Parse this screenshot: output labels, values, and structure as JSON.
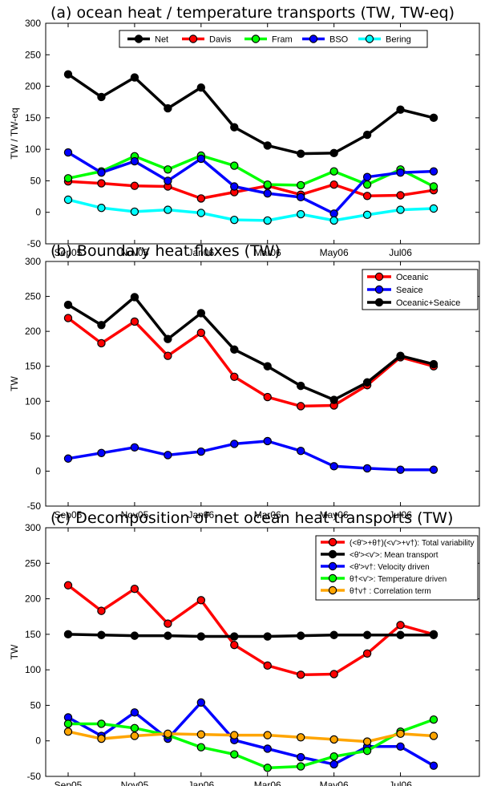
{
  "chart_data": [
    {
      "type": "line",
      "title": "(a) ocean heat / temperature transports (TW, TW-eq)",
      "ylabel": "TW / TW-eq",
      "xlabel": "",
      "ylim": [
        -50,
        300
      ],
      "yticks": [
        -50,
        0,
        50,
        100,
        150,
        200,
        250,
        300
      ],
      "x": [
        "Sep05",
        "Oct05",
        "Nov05",
        "Dec05",
        "Jan06",
        "Feb06",
        "Mar06",
        "Apr06",
        "May06",
        "Jun06",
        "Jul06",
        "Aug06"
      ],
      "xticks": [
        "Sep05",
        "Nov05",
        "Jan06",
        "Mar06",
        "May06",
        "Jul06"
      ],
      "grid": false,
      "legend": "top-center, horizontal",
      "series": [
        {
          "name": "Net",
          "color": "#000000",
          "values": [
            219,
            183,
            214,
            165,
            198,
            135,
            106,
            93,
            94,
            123,
            163,
            150
          ]
        },
        {
          "name": "Davis",
          "color": "#ff0000",
          "values": [
            49,
            46,
            42,
            41,
            22,
            32,
            42,
            28,
            44,
            26,
            27,
            35
          ]
        },
        {
          "name": "Fram",
          "color": "#00ff00",
          "values": [
            54,
            65,
            89,
            68,
            90,
            74,
            44,
            43,
            65,
            44,
            68,
            41
          ]
        },
        {
          "name": "BSO",
          "color": "#0000ff",
          "values": [
            95,
            63,
            81,
            50,
            85,
            41,
            30,
            24,
            -2,
            56,
            63,
            65
          ]
        },
        {
          "name": "Bering",
          "color": "#00ffff",
          "values": [
            20,
            7,
            1,
            4,
            -1,
            -12,
            -13,
            -3,
            -13,
            -4,
            4,
            6
          ]
        }
      ]
    },
    {
      "type": "line",
      "title": "(b) Boundary heat fluxes (TW)",
      "ylabel": "TW",
      "xlabel": "",
      "ylim": [
        -50,
        300
      ],
      "yticks": [
        -50,
        0,
        50,
        100,
        150,
        200,
        250,
        300
      ],
      "x": [
        "Sep05",
        "Oct05",
        "Nov05",
        "Dec05",
        "Jan06",
        "Feb06",
        "Mar06",
        "Apr06",
        "May06",
        "Jun06",
        "Jul06",
        "Aug06"
      ],
      "xticks": [
        "Sep05",
        "Nov05",
        "Jan06",
        "Mar06",
        "May06",
        "Jul06"
      ],
      "grid": false,
      "legend": "top-right",
      "series": [
        {
          "name": "Oceanic",
          "color": "#ff0000",
          "values": [
            219,
            183,
            214,
            165,
            198,
            135,
            106,
            93,
            94,
            123,
            163,
            150
          ]
        },
        {
          "name": "Seaice",
          "color": "#0000ff",
          "values": [
            18,
            26,
            34,
            23,
            28,
            39,
            43,
            29,
            7,
            4,
            2,
            2
          ]
        },
        {
          "name": "Oceanic+Seaice",
          "color": "#000000",
          "values": [
            238,
            209,
            249,
            189,
            226,
            174,
            150,
            122,
            102,
            127,
            165,
            153
          ]
        }
      ]
    },
    {
      "type": "line",
      "title": "(c) Decomposition of net ocean heat transports (TW)",
      "ylabel": "TW",
      "xlabel": "",
      "ylim": [
        -50,
        300
      ],
      "yticks": [
        -50,
        0,
        50,
        100,
        150,
        200,
        250,
        300
      ],
      "x": [
        "Sep05",
        "Oct05",
        "Nov05",
        "Dec05",
        "Jan06",
        "Feb06",
        "Mar06",
        "Apr06",
        "May06",
        "Jun06",
        "Jul06",
        "Aug06"
      ],
      "xticks": [
        "Sep05",
        "Nov05",
        "Jan06",
        "Mar06",
        "May06",
        "Jul06"
      ],
      "grid": false,
      "legend": "top-right",
      "series": [
        {
          "name": "(<θ'>+θ†)(<v'>+v†): Total variability",
          "color": "#ff0000",
          "values": [
            219,
            183,
            214,
            165,
            198,
            135,
            106,
            93,
            94,
            123,
            163,
            150
          ]
        },
        {
          "name": "<θ'><v'>: Mean transport",
          "color": "#000000",
          "values": [
            150,
            149,
            148,
            148,
            147,
            147,
            147,
            148,
            149,
            149,
            149,
            149
          ]
        },
        {
          "name": "<θ'>v†: Velocity driven",
          "color": "#0000ff",
          "values": [
            33,
            7,
            40,
            3,
            54,
            1,
            -11,
            -23,
            -33,
            -8,
            -8,
            -35
          ]
        },
        {
          "name": "θ†<v'>: Temperature driven",
          "color": "#00ff00",
          "values": [
            24,
            24,
            18,
            8,
            -9,
            -19,
            -38,
            -36,
            -22,
            -14,
            13,
            30
          ]
        },
        {
          "name": "θ†v†      : Correlation term",
          "color": "#ffa500",
          "values": [
            13,
            3,
            7,
            10,
            9,
            8,
            8,
            5,
            2,
            -1,
            10,
            7
          ]
        }
      ]
    }
  ]
}
